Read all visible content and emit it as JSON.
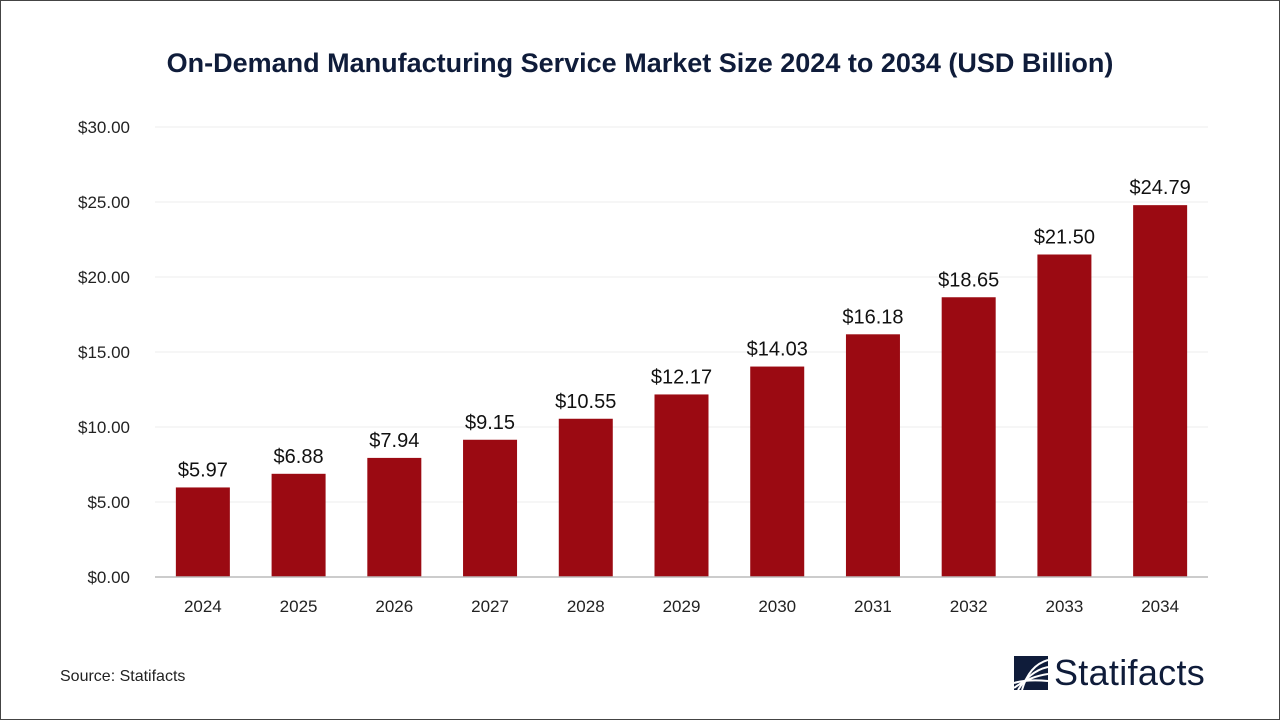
{
  "chart_data": {
    "type": "bar",
    "title": "On-Demand Manufacturing Service Market Size 2024 to 2034 (USD Billion)",
    "categories": [
      "2024",
      "2025",
      "2026",
      "2027",
      "2028",
      "2029",
      "2030",
      "2031",
      "2032",
      "2033",
      "2034"
    ],
    "values": [
      5.97,
      6.88,
      7.94,
      9.15,
      10.55,
      12.17,
      14.03,
      16.18,
      18.65,
      21.5,
      24.79
    ],
    "data_labels": [
      "$5.97",
      "$6.88",
      "$7.94",
      "$9.15",
      "$10.55",
      "$12.17",
      "$14.03",
      "$16.18",
      "$18.65",
      "$21.50",
      "$24.79"
    ],
    "yticks": [
      "$0.00",
      "$5.00",
      "$10.00",
      "$15.00",
      "$20.00",
      "$25.00",
      "$30.00"
    ],
    "ylim": [
      0,
      30
    ],
    "xlabel": "",
    "ylabel": "",
    "grid": true,
    "bar_color": "#9b0a12"
  },
  "source": "Source: Statifacts",
  "logo": {
    "text": "Statifacts",
    "color": "#0f1c3a"
  }
}
